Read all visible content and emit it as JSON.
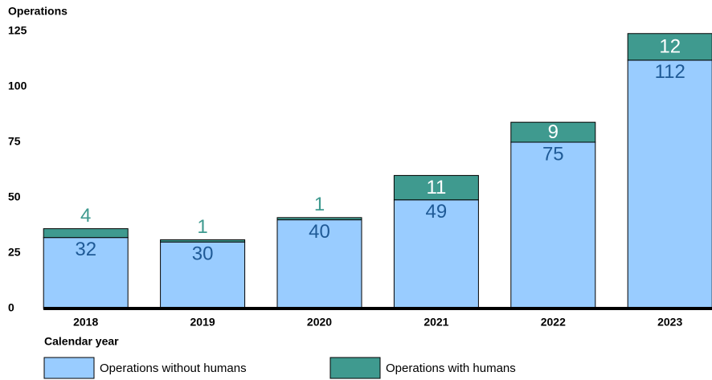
{
  "chart_data": {
    "type": "stacked_bar",
    "y_axis_title": "Operations",
    "x_axis_title": "Calendar year",
    "categories": [
      "2018",
      "2019",
      "2020",
      "2021",
      "2022",
      "2023"
    ],
    "series": [
      {
        "name": "Operations without humans",
        "color": "#99ccff",
        "values": [
          32,
          30,
          40,
          49,
          75,
          112
        ]
      },
      {
        "name": "Operations with humans",
        "color": "#3f9a8f",
        "values": [
          4,
          1,
          1,
          11,
          9,
          12
        ]
      }
    ],
    "ylim": [
      0,
      125
    ],
    "yticks": [
      0,
      25,
      50,
      75,
      100,
      125
    ],
    "grid": false
  }
}
